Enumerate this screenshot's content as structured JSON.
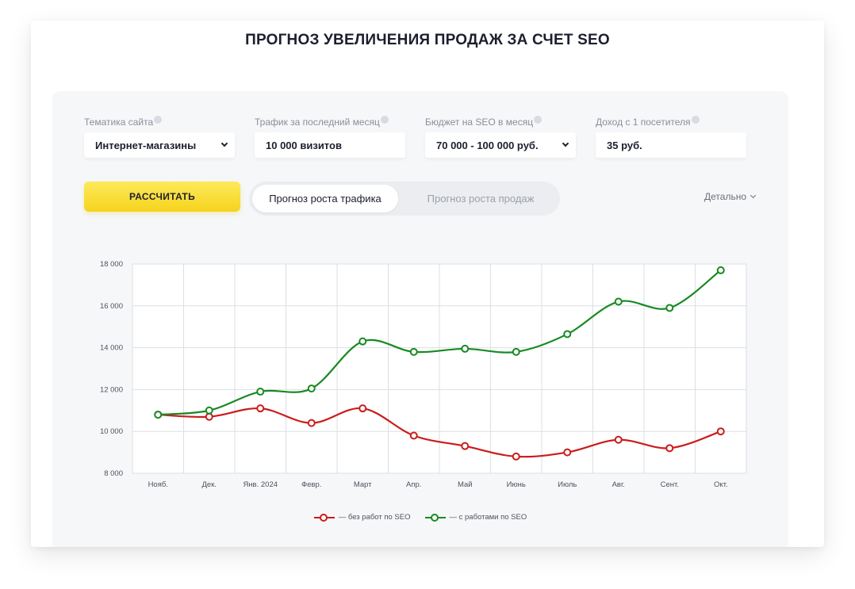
{
  "header": {
    "title": "ПРОГНОЗ УВЕЛИЧЕНИЯ ПРОДАЖ ЗА СЧЕТ SEO"
  },
  "form": {
    "topic": {
      "label": "Тематика сайта",
      "value": "Интернет-магазины"
    },
    "traffic": {
      "label": "Трафик за последний месяц",
      "value": "10 000 визитов"
    },
    "budget": {
      "label": "Бюджет на SEO в месяц",
      "value": "70 000 - 100 000 руб."
    },
    "income": {
      "label": "Доход с 1 посетителя",
      "value": "35 руб."
    }
  },
  "actions": {
    "calculate_label": "РАССЧИТАТЬ",
    "tabs": [
      {
        "label": "Прогноз роста трафика",
        "active": true
      },
      {
        "label": "Прогноз роста продаж",
        "active": false
      }
    ],
    "detail_label": "Детально"
  },
  "chart_data": {
    "type": "line",
    "categories": [
      "Нояб.",
      "Дек.",
      "Янв. 2024",
      "Февр.",
      "Март",
      "Апр.",
      "Май",
      "Июнь",
      "Июль",
      "Авг.",
      "Сент.",
      "Окт."
    ],
    "series": [
      {
        "name": "— без работ по SEO",
        "color": "#cc1b1b",
        "values": [
          10800,
          10700,
          11100,
          10400,
          11100,
          9800,
          9300,
          8800,
          9000,
          9600,
          9200,
          10000
        ]
      },
      {
        "name": "— с работами по SEO",
        "color": "#178a22",
        "values": [
          10800,
          11000,
          11900,
          12050,
          14300,
          13800,
          13950,
          13800,
          14650,
          16200,
          15900,
          17700
        ]
      }
    ],
    "ylim": [
      8000,
      18000
    ],
    "yticks": [
      "8 000",
      "10 000",
      "12 000",
      "14 000",
      "16 000",
      "18 000"
    ],
    "grid": true,
    "legend": "bottom-center"
  }
}
